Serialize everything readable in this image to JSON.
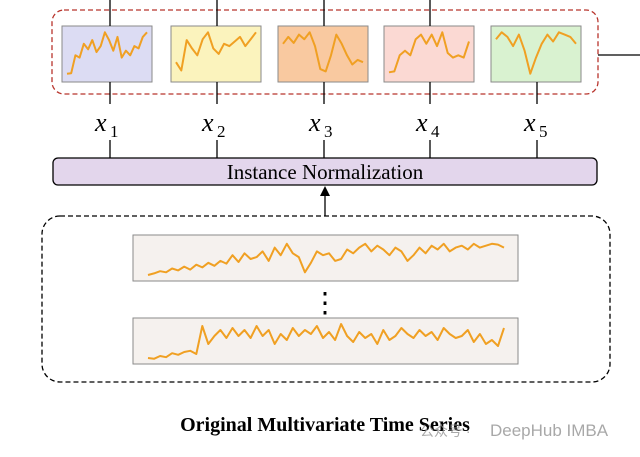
{
  "diagram": {
    "patch_labels": [
      {
        "base": "x",
        "sub": "1"
      },
      {
        "base": "x",
        "sub": "2"
      },
      {
        "base": "x",
        "sub": "3"
      },
      {
        "base": "x",
        "sub": "4"
      },
      {
        "base": "x",
        "sub": "5"
      }
    ],
    "norm_label": "Instance Normalization",
    "ellipsis": "⋮",
    "caption": "Original Multivariate Time Series",
    "watermark": "DeepHub IMBA",
    "watermark_prefix": "公众号 ·",
    "colors": {
      "line": "#f0a023",
      "patch_fills": [
        "#dcdcf3",
        "#fbf3bd",
        "#f9c9a0",
        "#fbd9d3",
        "#d9f2d0"
      ],
      "norm_fill": "#e3d6ec",
      "red_dash": "#b8342c"
    },
    "patches": [
      [
        0.95,
        0.94,
        0.55,
        0.6,
        0.3,
        0.42,
        0.22,
        0.48,
        0.35,
        0.05,
        0.22,
        0.45,
        0.15,
        0.6,
        0.45,
        0.55,
        0.35,
        0.4,
        0.15,
        0.05
      ],
      [
        0.7,
        0.88,
        0.22,
        0.4,
        0.55,
        0.2,
        0.05,
        0.4,
        0.52,
        0.3,
        0.35,
        0.25,
        0.15,
        0.35,
        0.2,
        0.05
      ],
      [
        0.3,
        0.15,
        0.28,
        0.1,
        0.2,
        0.05,
        0.35,
        0.85,
        0.9,
        0.55,
        0.1,
        0.3,
        0.55,
        0.75,
        0.65,
        0.7
      ],
      [
        0.92,
        0.9,
        0.55,
        0.45,
        0.55,
        0.2,
        0.1,
        0.3,
        0.1,
        0.35,
        0.05,
        0.5,
        0.6,
        0.55,
        0.6,
        0.25
      ],
      [
        0.2,
        0.05,
        0.15,
        0.35,
        0.1,
        0.45,
        0.95,
        0.6,
        0.3,
        0.1,
        0.25,
        0.05,
        0.1,
        0.15,
        0.3
      ]
    ],
    "series_top": [
      0.92,
      0.88,
      0.82,
      0.85,
      0.75,
      0.8,
      0.7,
      0.78,
      0.65,
      0.72,
      0.6,
      0.68,
      0.55,
      0.62,
      0.4,
      0.58,
      0.35,
      0.5,
      0.45,
      0.3,
      0.55,
      0.2,
      0.4,
      0.1,
      0.35,
      0.45,
      0.85,
      0.6,
      0.3,
      0.4,
      0.35,
      0.55,
      0.5,
      0.25,
      0.35,
      0.2,
      0.1,
      0.3,
      0.15,
      0.25,
      0.4,
      0.2,
      0.3,
      0.55,
      0.4,
      0.2,
      0.35,
      0.15,
      0.25,
      0.1,
      0.3,
      0.2,
      0.15,
      0.25,
      0.1,
      0.2,
      0.15,
      0.1,
      0.12,
      0.2
    ],
    "series_bottom": [
      0.9,
      0.92,
      0.85,
      0.88,
      0.78,
      0.82,
      0.75,
      0.72,
      0.8,
      0.1,
      0.55,
      0.35,
      0.2,
      0.4,
      0.15,
      0.35,
      0.2,
      0.4,
      0.1,
      0.35,
      0.2,
      0.55,
      0.3,
      0.45,
      0.15,
      0.35,
      0.2,
      0.3,
      0.1,
      0.4,
      0.25,
      0.45,
      0.05,
      0.35,
      0.5,
      0.25,
      0.4,
      0.3,
      0.55,
      0.2,
      0.45,
      0.35,
      0.15,
      0.3,
      0.4,
      0.2,
      0.35,
      0.25,
      0.45,
      0.15,
      0.3,
      0.4,
      0.35,
      0.2,
      0.5,
      0.3,
      0.55,
      0.45,
      0.6,
      0.15
    ]
  }
}
